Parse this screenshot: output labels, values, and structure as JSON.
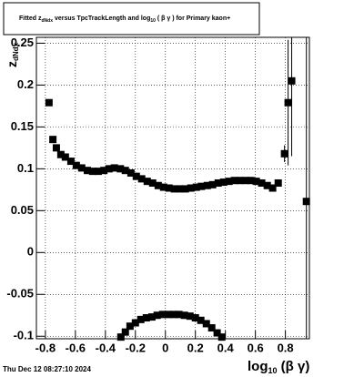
{
  "chart_data": {
    "type": "scatter",
    "title": [
      "Fitted z",
      "dNdx",
      " versus TpcTrackLength and log",
      "10",
      " ( β γ ) for Primary kaon+"
    ],
    "y_label": [
      "z",
      "dNdx"
    ],
    "x_label": [
      "log",
      "10",
      " (β γ)"
    ],
    "footer": "Thu Dec 12 08:27:10 2024",
    "xlim": [
      -0.86,
      0.96
    ],
    "ylim": [
      -0.103,
      0.257
    ],
    "xticks": [
      -0.8,
      -0.6,
      -0.4,
      -0.2,
      0,
      0.2,
      0.4,
      0.6,
      0.8
    ],
    "yticks": [
      -0.1,
      -0.05,
      0,
      0.05,
      0.1,
      0.15,
      0.2,
      0.25
    ],
    "grid": true,
    "color": "#000000",
    "series": [
      {
        "x": [
          -0.776,
          -0.75,
          -0.727,
          -0.697,
          -0.667,
          -0.63,
          -0.594,
          -0.558,
          -0.52,
          -0.485,
          -0.448,
          -0.41,
          -0.376,
          -0.34,
          -0.3,
          -0.267,
          -0.23,
          -0.194,
          -0.158,
          -0.121,
          -0.085,
          -0.048,
          -0.012,
          0.024,
          0.06,
          0.097,
          0.133,
          0.17,
          0.206,
          0.24,
          0.279,
          0.315,
          0.352,
          0.388,
          0.424,
          0.46,
          0.497,
          0.533,
          0.57,
          0.606,
          0.642,
          0.679,
          0.715,
          0.752,
          0.794,
          0.818,
          0.842,
          0.94
        ],
        "values": [
          0.179,
          0.135,
          0.125,
          0.117,
          0.114,
          0.109,
          0.104,
          0.101,
          0.098,
          0.097,
          0.097,
          0.098,
          0.1,
          0.101,
          0.1,
          0.098,
          0.095,
          0.091,
          0.088,
          0.085,
          0.083,
          0.08,
          0.078,
          0.077,
          0.076,
          0.076,
          0.076,
          0.077,
          0.078,
          0.079,
          0.08,
          0.081,
          0.083,
          0.084,
          0.085,
          0.086,
          0.086,
          0.086,
          0.086,
          0.085,
          0.083,
          0.08,
          0.077,
          0.083,
          0.118,
          0.179,
          0.205,
          0.061
        ],
        "errors": [
          null,
          null,
          null,
          null,
          null,
          null,
          null,
          null,
          null,
          null,
          null,
          null,
          null,
          null,
          null,
          null,
          null,
          null,
          null,
          null,
          null,
          null,
          null,
          null,
          null,
          null,
          null,
          null,
          null,
          null,
          null,
          null,
          null,
          null,
          null,
          null,
          null,
          null,
          null,
          null,
          null,
          null,
          null,
          null,
          0.01,
          0.075,
          0.09,
          0.2
        ]
      },
      {
        "x": [
          -0.297,
          -0.267,
          -0.236,
          -0.2,
          -0.164,
          -0.127,
          -0.09,
          -0.055,
          -0.018,
          0.018,
          0.055,
          0.09,
          0.127,
          0.164,
          0.2,
          0.236,
          0.273,
          0.309,
          0.345,
          0.376
        ],
        "values": [
          -0.101,
          -0.095,
          -0.088,
          -0.084,
          -0.08,
          -0.078,
          -0.077,
          -0.075,
          -0.074,
          -0.074,
          -0.074,
          -0.074,
          -0.075,
          -0.076,
          -0.078,
          -0.081,
          -0.085,
          -0.09,
          -0.096,
          -0.101
        ]
      }
    ]
  }
}
